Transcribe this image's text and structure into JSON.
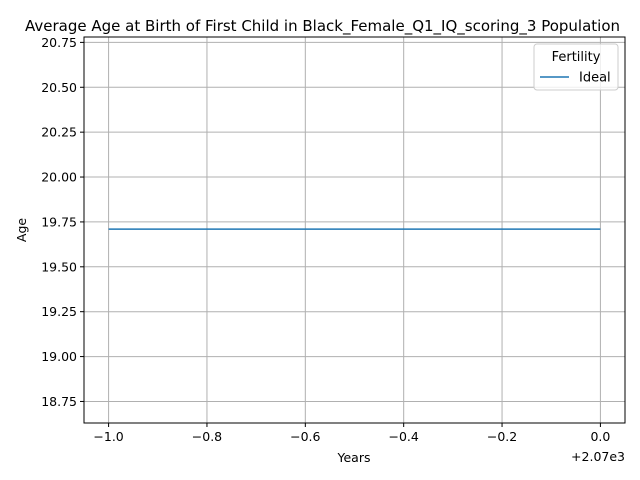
{
  "chart_data": {
    "type": "line",
    "title": "Average Age at Birth of First Child in Black_Female_Q1_IQ_scoring_3 Population",
    "xlabel": "Years",
    "ylabel": "Age",
    "x_offset_label": "+2.07e3",
    "xlim": [
      -1.05,
      0.05
    ],
    "ylim": [
      18.63,
      20.78
    ],
    "x_ticks": [
      -1.0,
      -0.8,
      -0.6,
      -0.4,
      -0.2,
      0.0
    ],
    "x_tick_labels": [
      "−1.0",
      "−0.8",
      "−0.6",
      "−0.4",
      "−0.2",
      "0.0"
    ],
    "y_ticks": [
      18.75,
      19.0,
      19.25,
      19.5,
      19.75,
      20.0,
      20.25,
      20.5,
      20.75
    ],
    "y_tick_labels": [
      "18.75",
      "19.00",
      "19.25",
      "19.50",
      "19.75",
      "20.00",
      "20.25",
      "20.50",
      "20.75"
    ],
    "grid": true,
    "legend": {
      "title": "Fertility",
      "placement": "top-right"
    },
    "series": [
      {
        "name": "Ideal",
        "color": "#1f77b4",
        "x": [
          -1.0,
          0.0
        ],
        "y": [
          19.71,
          19.71
        ]
      }
    ]
  }
}
